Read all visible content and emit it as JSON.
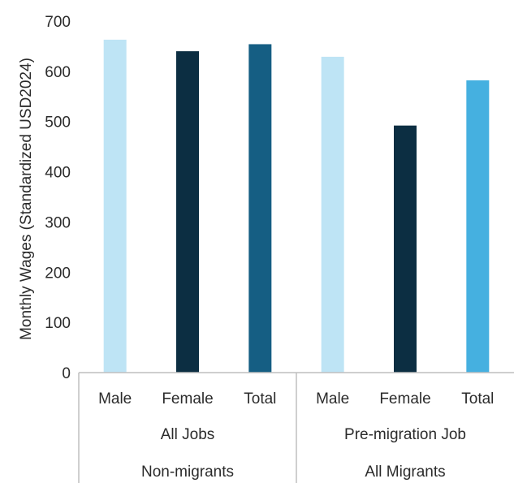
{
  "chart_data": {
    "type": "bar",
    "title": "",
    "ylabel": "Monthly Wages (Standardized USD2024)",
    "ylim": [
      0,
      700
    ],
    "yticks": [
      0,
      100,
      200,
      300,
      400,
      500,
      600,
      700
    ],
    "grid": false,
    "legend": "none",
    "categories": [
      "Male",
      "Female",
      "Total",
      "Male",
      "Female",
      "Total"
    ],
    "values": [
      663,
      640,
      654,
      629,
      492,
      582
    ],
    "colors": [
      "#bee4f5",
      "#0c2e42",
      "#155e83",
      "#bee4f5",
      "#0c2e42",
      "#45b0e0"
    ],
    "groups": [
      {
        "label": "All Jobs",
        "categories": [
          "Male",
          "Female",
          "Total"
        ]
      },
      {
        "label": "Pre-migration Job",
        "categories": [
          "Male",
          "Female",
          "Total"
        ]
      }
    ],
    "super_groups": [
      {
        "label": "Non-migrants"
      },
      {
        "label": "All Migrants"
      }
    ]
  }
}
